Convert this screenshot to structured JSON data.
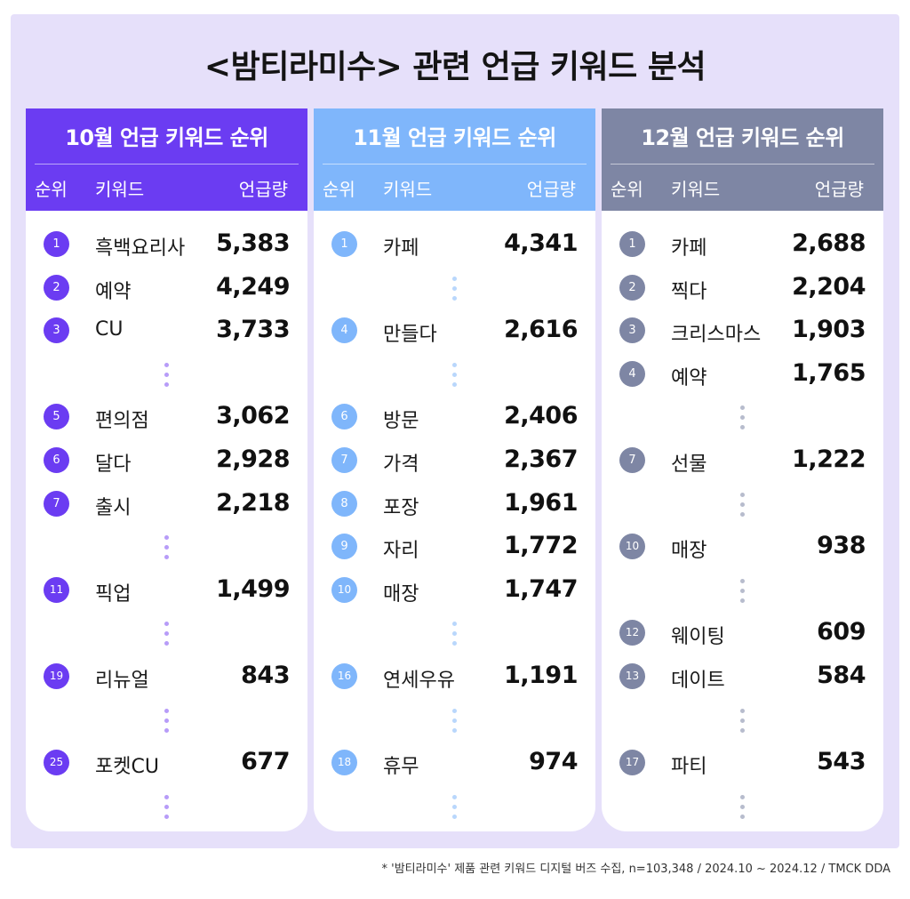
{
  "title": "<밤티라미수> 관련 언급 키워드 분석",
  "colors": {
    "panel_bg": "#e6e0fa",
    "oct": "#6b3cf2",
    "nov": "#7fb6fb",
    "dec": "#7e86a4"
  },
  "columns": {
    "rank": "순위",
    "keyword": "키워드",
    "count": "언급량"
  },
  "months": [
    {
      "title": "10월 언급 키워드 순위",
      "color": "#6b3cf2",
      "rows": [
        {
          "rank": "1",
          "keyword": "흑백요리사",
          "count": "5,383"
        },
        {
          "rank": "2",
          "keyword": "예약",
          "count": "4,249"
        },
        {
          "rank": "3",
          "keyword": "CU",
          "count": "3,733"
        },
        {
          "rank": "5",
          "keyword": "편의점",
          "count": "3,062"
        },
        {
          "rank": "6",
          "keyword": "달다",
          "count": "2,928"
        },
        {
          "rank": "7",
          "keyword": "출시",
          "count": "2,218"
        },
        {
          "rank": "11",
          "keyword": "픽업",
          "count": "1,499"
        },
        {
          "rank": "19",
          "keyword": "리뉴얼",
          "count": "843"
        },
        {
          "rank": "25",
          "keyword": "포켓CU",
          "count": "677"
        }
      ]
    },
    {
      "title": "11월 언급 키워드 순위",
      "color": "#7fb6fb",
      "rows": [
        {
          "rank": "1",
          "keyword": "카페",
          "count": "4,341"
        },
        {
          "rank": "4",
          "keyword": "만들다",
          "count": "2,616"
        },
        {
          "rank": "6",
          "keyword": "방문",
          "count": "2,406"
        },
        {
          "rank": "7",
          "keyword": "가격",
          "count": "2,367"
        },
        {
          "rank": "8",
          "keyword": "포장",
          "count": "1,961"
        },
        {
          "rank": "9",
          "keyword": "자리",
          "count": "1,772"
        },
        {
          "rank": "10",
          "keyword": "매장",
          "count": "1,747"
        },
        {
          "rank": "16",
          "keyword": "연세우유",
          "count": "1,191"
        },
        {
          "rank": "18",
          "keyword": "휴무",
          "count": "974"
        }
      ]
    },
    {
      "title": "12월 언급 키워드 순위",
      "color": "#7e86a4",
      "rows": [
        {
          "rank": "1",
          "keyword": "카페",
          "count": "2,688"
        },
        {
          "rank": "2",
          "keyword": "찍다",
          "count": "2,204"
        },
        {
          "rank": "3",
          "keyword": "크리스마스",
          "count": "1,903"
        },
        {
          "rank": "4",
          "keyword": "예약",
          "count": "1,765"
        },
        {
          "rank": "7",
          "keyword": "선물",
          "count": "1,222"
        },
        {
          "rank": "10",
          "keyword": "매장",
          "count": "938"
        },
        {
          "rank": "12",
          "keyword": "웨이팅",
          "count": "609"
        },
        {
          "rank": "13",
          "keyword": "데이트",
          "count": "584"
        },
        {
          "rank": "17",
          "keyword": "파티",
          "count": "543"
        }
      ]
    }
  ],
  "footnote": "* '밤티라미수' 제품 관련 키워드 디지털 버즈 수집, n=103,348 / 2024.10 ~ 2024.12 / TMCK DDA"
}
